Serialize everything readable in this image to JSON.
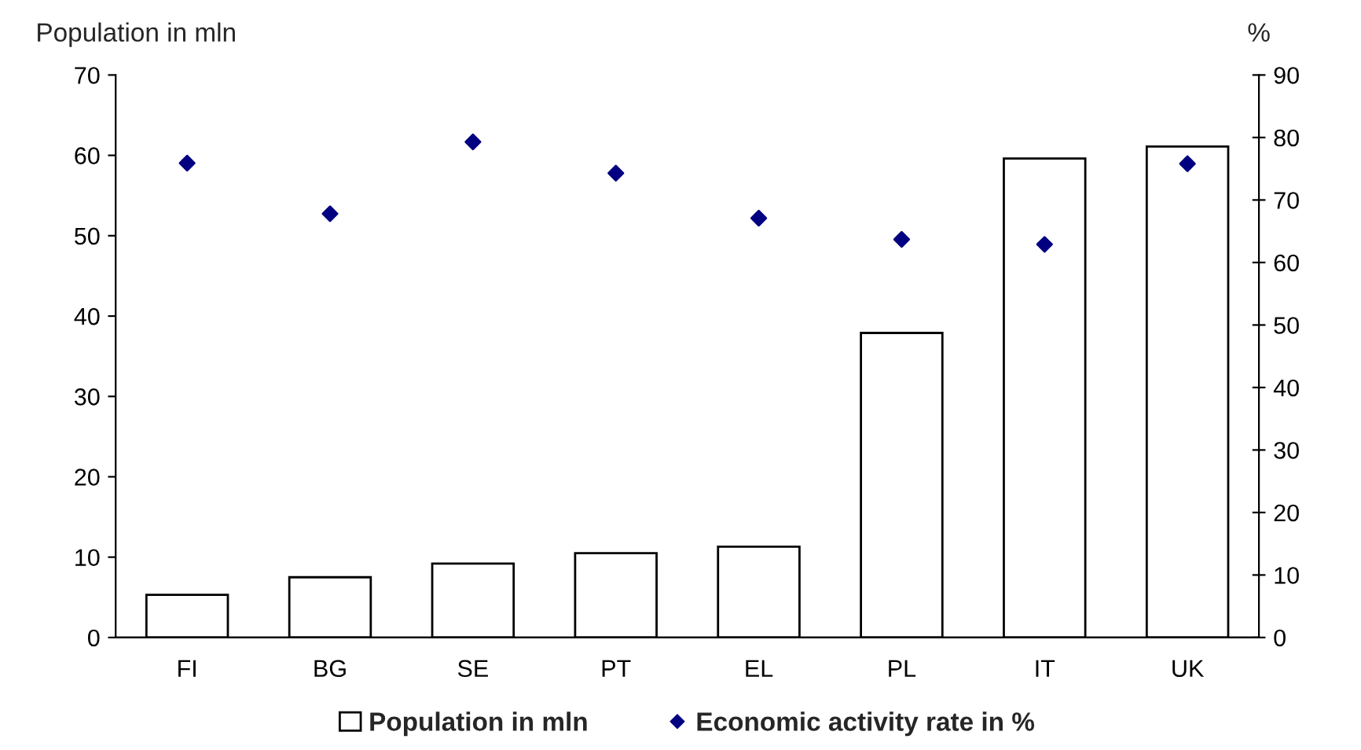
{
  "chart_data": {
    "type": "bar",
    "categories": [
      "FI",
      "BG",
      "SE",
      "PT",
      "EL",
      "PL",
      "IT",
      "UK"
    ],
    "ylabel": "Population in mln",
    "y2label": "%",
    "ylim": [
      0,
      70
    ],
    "yticks": [
      0,
      10,
      20,
      30,
      40,
      50,
      60,
      70
    ],
    "y2lim": [
      0,
      90
    ],
    "y2ticks": [
      0,
      10,
      20,
      30,
      40,
      50,
      60,
      70,
      80,
      90
    ],
    "series": [
      {
        "name": "Population in mln",
        "color": "#ffffff",
        "values": [
          5.3,
          7.5,
          9.2,
          10.5,
          11.3,
          37.9,
          59.6,
          61.1
        ]
      },
      {
        "name": "Economic activity rate in %",
        "type": "scatter",
        "axis": "y2",
        "color": "#000080",
        "marker": "diamond",
        "values": [
          75.9,
          67.8,
          79.3,
          74.3,
          67.1,
          63.7,
          62.9,
          75.8
        ]
      }
    ],
    "legend": "bottom",
    "grid": false
  }
}
